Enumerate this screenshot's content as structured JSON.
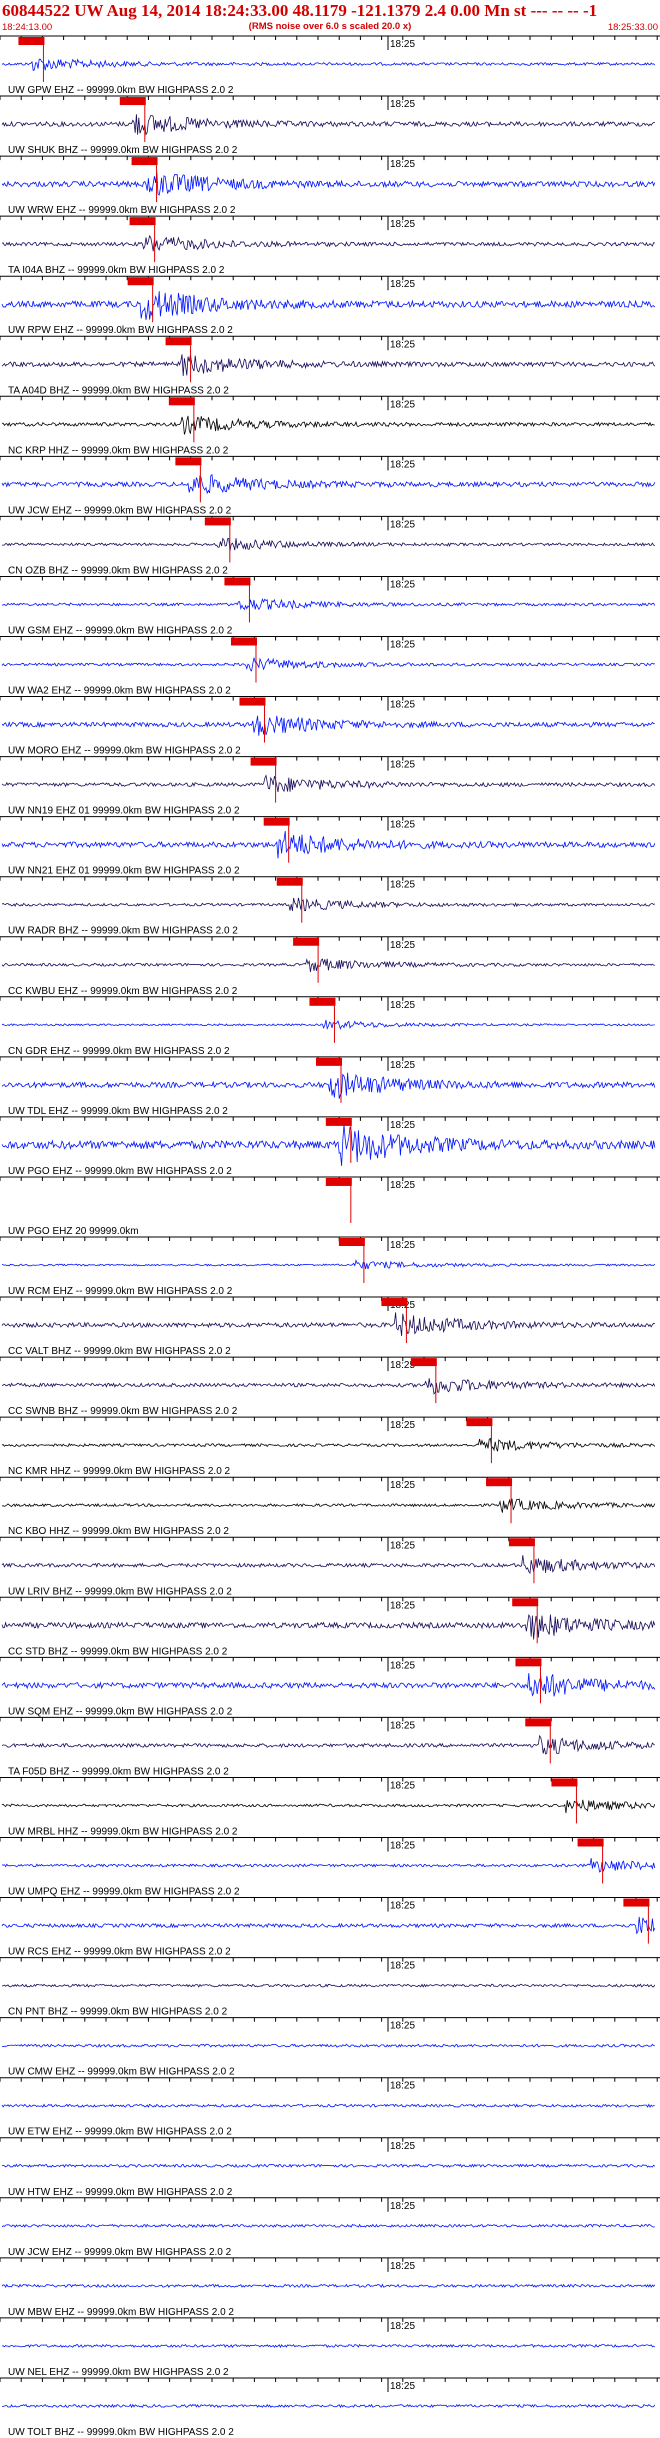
{
  "header": {
    "title": "60844522 UW Aug 14, 2014 18:24:33.00   48.1179 -121.1379  2.4 0.00 Mn st --- -- --  -1",
    "subtitle": "(RMS noise over 6.0 s scaled 20.0 x)",
    "start_time": "18:24:13.00",
    "end_time": "18:25:33.00"
  },
  "minute_label": "18:25",
  "colors": {
    "header_text": "#d40000",
    "pick_box": "#e00000",
    "pick_line": "#e00000",
    "trace_blue": "#0014ff",
    "trace_dark": "#1a0a5a",
    "trace_black": "#000000",
    "gridline": "#000000"
  },
  "traces": [
    {
      "label": "UW GPW EHZ -- 99999.0km BW HIGHPASS  2.0  2",
      "pick": 0.045,
      "color": "blue",
      "amp": 3
    },
    {
      "label": "UW SHUK BHZ -- 99999.0km BW HIGHPASS  2.0  2",
      "pick": 0.2,
      "color": "dark",
      "amp": 5
    },
    {
      "label": "UW WRW EHZ -- 99999.0km BW HIGHPASS  2.0  2",
      "pick": 0.218,
      "color": "blue",
      "amp": 6
    },
    {
      "label": "TA I04A BHZ -- 99999.0km BW HIGHPASS  2.0  2",
      "pick": 0.215,
      "color": "dark",
      "amp": 4
    },
    {
      "label": "UW RPW EHZ -- 99999.0km BW HIGHPASS  2.0  2",
      "pick": 0.212,
      "color": "blue",
      "amp": 7
    },
    {
      "label": "TA A04D BHZ -- 99999.0km BW HIGHPASS  2.0  2",
      "pick": 0.27,
      "color": "dark",
      "amp": 5
    },
    {
      "label": "NC KRP HHZ -- 99999.0km BW HIGHPASS  2.0  2",
      "pick": 0.275,
      "color": "black",
      "amp": 4
    },
    {
      "label": "UW JCW EHZ -- 99999.0km BW HIGHPASS  2.0  2",
      "pick": 0.285,
      "color": "blue",
      "amp": 5
    },
    {
      "label": "CN OZB BHZ -- 99999.0km BW HIGHPASS  2.0  2",
      "pick": 0.33,
      "color": "dark",
      "amp": 3
    },
    {
      "label": "UW GSM EHZ -- 99999.0km BW HIGHPASS  2.0  2",
      "pick": 0.36,
      "color": "blue",
      "amp": 3
    },
    {
      "label": "UW WA2 EHZ -- 99999.0km BW HIGHPASS  2.0  2",
      "pick": 0.37,
      "color": "blue",
      "amp": 3
    },
    {
      "label": "UW MORO EHZ -- 99999.0km BW HIGHPASS  2.0  2",
      "pick": 0.383,
      "color": "blue",
      "amp": 5
    },
    {
      "label": "UW NN19 EHZ 01 99999.0km BW HIGHPASS  2.0  2",
      "pick": 0.4,
      "color": "dark",
      "amp": 4
    },
    {
      "label": "UW NN21 EHZ 01 99999.0km BW HIGHPASS  2.0  2",
      "pick": 0.42,
      "color": "blue",
      "amp": 6
    },
    {
      "label": "UW RADR BHZ -- 99999.0km BW HIGHPASS  2.0  2",
      "pick": 0.44,
      "color": "dark",
      "amp": 3
    },
    {
      "label": "CC KWBU EHZ -- 99999.0km BW HIGHPASS  2.0  2",
      "pick": 0.465,
      "color": "dark",
      "amp": 3
    },
    {
      "label": "CN GDR EHZ -- 99999.0km BW HIGHPASS  2.0  2",
      "pick": 0.49,
      "color": "blue",
      "amp": 2
    },
    {
      "label": "UW TDL EHZ -- 99999.0km BW HIGHPASS  2.0  2",
      "pick": 0.5,
      "color": "blue",
      "amp": 6
    },
    {
      "label": "UW PGO EHZ -- 99999.0km BW HIGHPASS  2.0  2",
      "pick": 0.515,
      "color": "blue",
      "amp": 9
    },
    {
      "label": "UW PGO EHZ 20 99999.0km",
      "pick": 0.515,
      "color": "blue",
      "amp": 0
    },
    {
      "label": "UW RCM EHZ -- 99999.0km BW HIGHPASS  2.0  2",
      "pick": 0.535,
      "color": "blue",
      "amp": 2
    },
    {
      "label": "CC VALT BHZ -- 99999.0km BW HIGHPASS  2.0  2",
      "pick": 0.6,
      "color": "dark",
      "amp": 5
    },
    {
      "label": "CC SWNB BHZ -- 99999.0km BW HIGHPASS  2.0  2",
      "pick": 0.645,
      "color": "dark",
      "amp": 4
    },
    {
      "label": "NC KMR HHZ -- 99999.0km BW HIGHPASS  2.0  2",
      "pick": 0.73,
      "color": "black",
      "amp": 3
    },
    {
      "label": "NC KBO HHZ -- 99999.0km BW HIGHPASS  2.0  2",
      "pick": 0.76,
      "color": "black",
      "amp": 3
    },
    {
      "label": "UW LRIV BHZ -- 99999.0km BW HIGHPASS  2.0  2",
      "pick": 0.795,
      "color": "dark",
      "amp": 4
    },
    {
      "label": "CC STD BHZ -- 99999.0km BW HIGHPASS  2.0  2",
      "pick": 0.8,
      "color": "dark",
      "amp": 6
    },
    {
      "label": "UW SQM EHZ -- 99999.0km BW HIGHPASS  2.0  2",
      "pick": 0.805,
      "color": "blue",
      "amp": 6
    },
    {
      "label": "TA F05D BHZ -- 99999.0km BW HIGHPASS  2.0  2",
      "pick": 0.82,
      "color": "dark",
      "amp": 4
    },
    {
      "label": "UW MRBL HHZ -- 99999.0km BW HIGHPASS  2.0  2",
      "pick": 0.86,
      "color": "black",
      "amp": 3
    },
    {
      "label": "UW UMPQ EHZ -- 99999.0km BW HIGHPASS  2.0  2",
      "pick": 0.9,
      "color": "blue",
      "amp": 3
    },
    {
      "label": "UW RCS EHZ -- 99999.0km BW HIGHPASS  2.0  2",
      "pick": 0.97,
      "color": "blue",
      "amp": 4
    },
    {
      "label": "CN PNT BHZ -- 99999.0km BW HIGHPASS  2.0  2",
      "pick": null,
      "color": "dark",
      "amp": 3
    },
    {
      "label": "UW CMW EHZ -- 99999.0km BW HIGHPASS  2.0  2",
      "pick": null,
      "color": "blue",
      "amp": 3
    },
    {
      "label": "UW ETW EHZ -- 99999.0km BW HIGHPASS  2.0  2",
      "pick": null,
      "color": "blue",
      "amp": 3
    },
    {
      "label": "UW HTW EHZ -- 99999.0km BW HIGHPASS  2.0  2",
      "pick": null,
      "color": "blue",
      "amp": 3
    },
    {
      "label": "UW JCW EHZ -- 99999.0km BW HIGHPASS  2.0  2",
      "pick": null,
      "color": "blue",
      "amp": 3
    },
    {
      "label": "UW MBW EHZ -- 99999.0km BW HIGHPASS  2.0  2",
      "pick": null,
      "color": "blue",
      "amp": 3
    },
    {
      "label": "UW NEL EHZ -- 99999.0km BW HIGHPASS  2.0  2",
      "pick": null,
      "color": "blue",
      "amp": 3
    },
    {
      "label": "UW TOLT BHZ -- 99999.0km BW HIGHPASS  2.0  2",
      "pick": null,
      "color": "blue",
      "amp": 3
    }
  ]
}
